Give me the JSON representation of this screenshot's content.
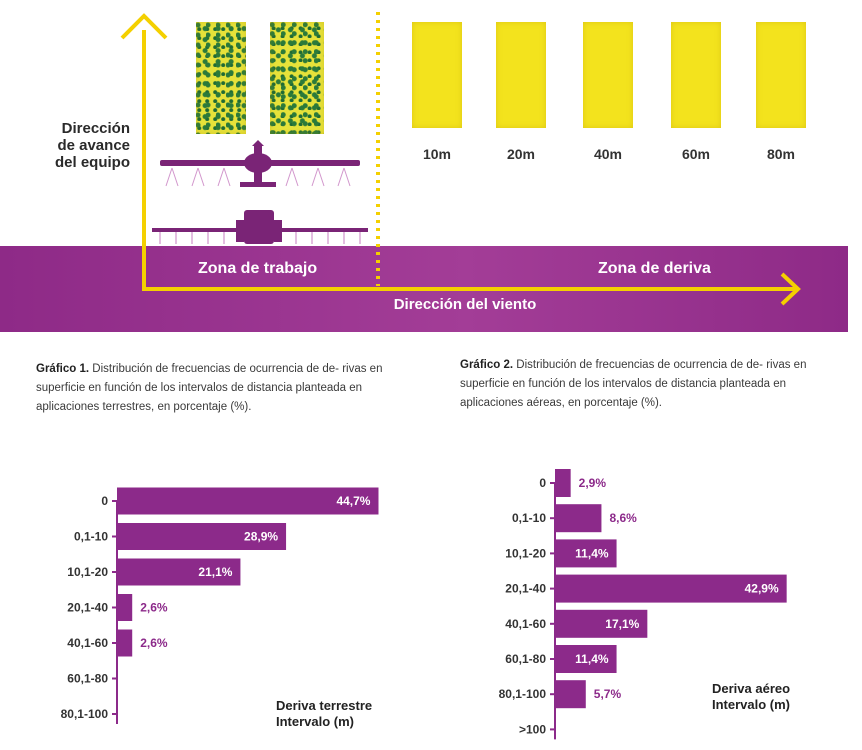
{
  "colors": {
    "purple": "#8c2a8a",
    "yellow": "#f3e31d",
    "arrow": "#f4d000"
  },
  "diagram": {
    "direction_equipment": [
      "Dirección",
      "de avance",
      "del equipo"
    ],
    "distance_labels": [
      "10m",
      "20m",
      "40m",
      "60m",
      "80m"
    ],
    "zone_work": "Zona de trabajo",
    "zone_drift": "Zona de deriva",
    "wind_direction": "Dirección del viento"
  },
  "captions": {
    "graph1_title": "Gráfico 1.",
    "graph1_text": "Distribución de frecuencias de ocurrencia de de- rivas en superficie en función de los intervalos de distancia planteada en aplicaciones terrestres, en porcentaje (%).",
    "graph2_title": "Gráfico 2.",
    "graph2_text": "Distribución de frecuencias de ocurrencia de de- rivas en superficie en función de los intervalos de distancia planteada en aplicaciones aéreas, en porcentaje (%)."
  },
  "chart_data": [
    {
      "type": "bar",
      "orientation": "horizontal",
      "title": "Deriva terrestre",
      "xlabel": "Intervalo (m)",
      "categories": [
        "0",
        "0,1-10",
        "10,1-20",
        "20,1-40",
        "40,1-60",
        "60,1-80",
        "80,1-100"
      ],
      "values": [
        44.7,
        28.9,
        21.1,
        2.6,
        2.6,
        0,
        0
      ],
      "labels": [
        "44,7%",
        "28,9%",
        "21,1%",
        "2,6%",
        "2,6%",
        "",
        ""
      ]
    },
    {
      "type": "bar",
      "orientation": "horizontal",
      "title": "Deriva aéreo",
      "xlabel": "Intervalo (m)",
      "categories": [
        "0",
        "0,1-10",
        "10,1-20",
        "20,1-40",
        "40,1-60",
        "60,1-80",
        "80,1-100",
        ">100"
      ],
      "values": [
        2.9,
        8.6,
        11.4,
        42.9,
        17.1,
        11.4,
        5.7,
        0
      ],
      "labels": [
        "2,9%",
        "8,6%",
        "11,4%",
        "42,9%",
        "17,1%",
        "11,4%",
        "5,7%",
        ""
      ]
    }
  ]
}
